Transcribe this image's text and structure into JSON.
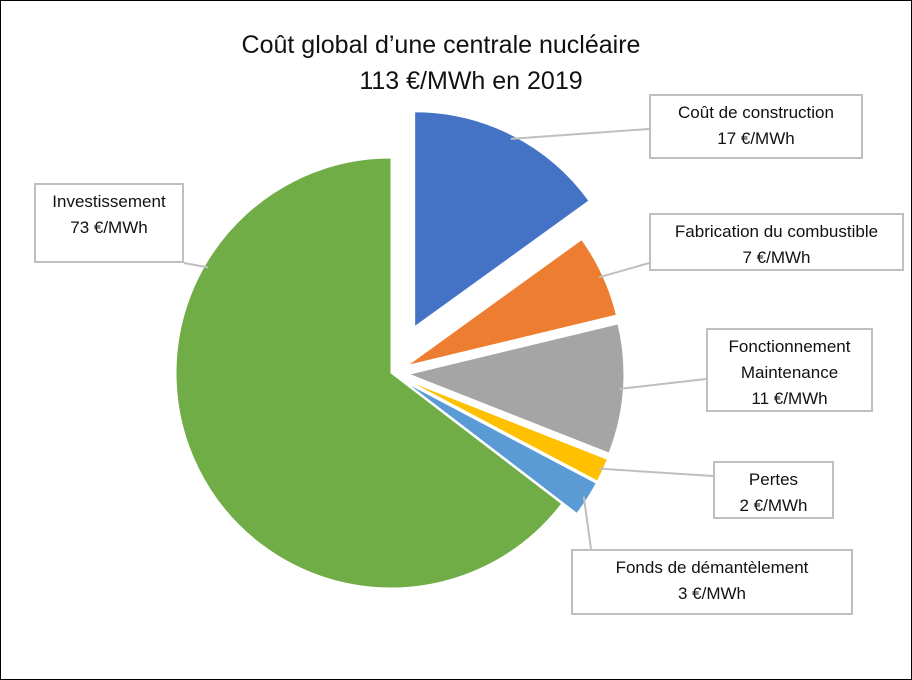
{
  "chart_data": {
    "type": "pie",
    "title": "Coût global d’une centrale nucléaire",
    "subtitle": "113 €/MWh en 2019",
    "categories": [
      "Coût de construction",
      "Fabrication du combustible",
      "Fonctionnement Maintenance",
      "Pertes",
      "Fonds de démantèlement",
      "Investissement"
    ],
    "values": [
      17,
      7,
      11,
      2,
      3,
      73
    ],
    "value_labels": [
      "17 €/MWh",
      "7 €/MWh",
      "11 €/MWh",
      "2 €/MWh",
      "3 €/MWh",
      "73 €/MWh"
    ],
    "colors": [
      "#4472c4",
      "#ed7d31",
      "#a5a5a5",
      "#ffc000",
      "#5b9bd5",
      "#70ad47"
    ]
  }
}
